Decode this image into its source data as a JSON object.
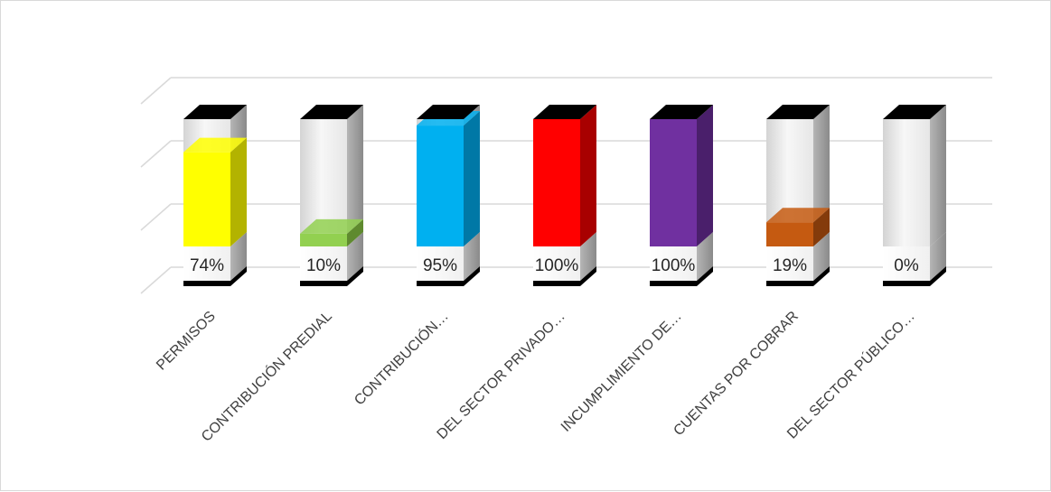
{
  "chart_data": {
    "type": "bar",
    "style": "3d-stacked-100-percent",
    "title": "",
    "xlabel": "",
    "ylabel": "",
    "ylim": [
      0,
      100
    ],
    "grid": true,
    "legend": "none",
    "categories": [
      "PERMISOS",
      "CONTRIBUCIÓN PREDIAL",
      "CONTRIBUCIÓN…",
      "DEL SECTOR PRIVADO…",
      "INCUMPLIMIENTO DE…",
      "CUENTAS POR COBRAR",
      "DEL SECTOR PÚBLICO…"
    ],
    "values": [
      74,
      10,
      95,
      100,
      100,
      19,
      0
    ],
    "data_labels": [
      "74%",
      "10%",
      "95%",
      "100%",
      "100%",
      "19%",
      "0%"
    ],
    "colors": [
      "#ffff00",
      "#92d050",
      "#00b0f0",
      "#ff0000",
      "#7030a0",
      "#c55a11",
      "#e0e0e0"
    ],
    "colors_side": [
      "#b3b300",
      "#5f8a2f",
      "#0078a6",
      "#a80000",
      "#4a1f6b",
      "#843b0b",
      "#9a9a9a"
    ]
  }
}
